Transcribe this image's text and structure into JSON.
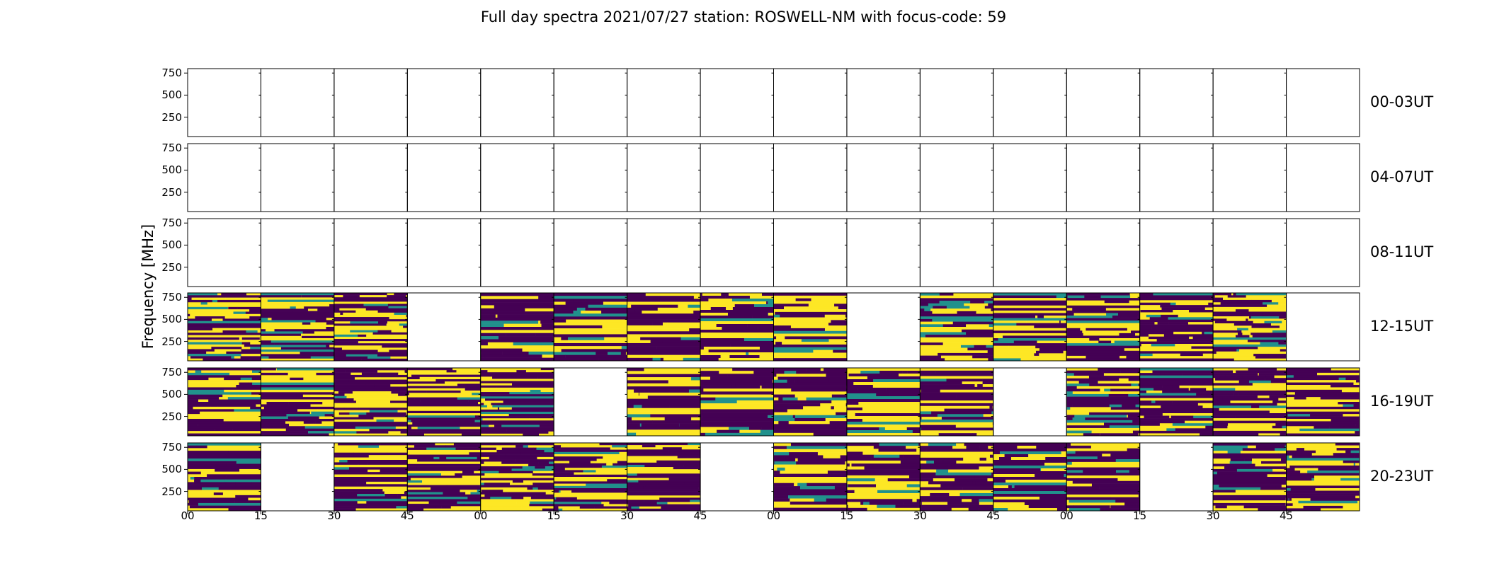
{
  "figure": {
    "title": "Full day spectra 2021/07/27 station: ROSWELL-NM with focus-code: 59",
    "ylabel": "Frequency [MHz]"
  },
  "colormap": {
    "name": "viridis",
    "low": "#440154",
    "mid": "#21918c",
    "high": "#fde725"
  },
  "chart_data": {
    "type": "heatmap",
    "title": "Full day spectra 2021/07/27 station: ROSWELL-NM with focus-code: 59",
    "ylabel": "Frequency [MHz]",
    "ylim": [
      30,
      800
    ],
    "yticks": [
      250,
      500,
      750
    ],
    "xticks": [
      "00",
      "15",
      "30",
      "45",
      "00",
      "15",
      "30",
      "45",
      "00",
      "15",
      "30",
      "45",
      "00",
      "15",
      "30",
      "45"
    ],
    "rows": [
      {
        "label": "00-03UT",
        "panels_with_data": [
          0,
          0,
          0,
          0,
          0,
          0,
          0,
          0,
          0,
          0,
          0,
          0,
          0,
          0,
          0,
          0
        ]
      },
      {
        "label": "04-07UT",
        "panels_with_data": [
          0,
          0,
          0,
          0,
          0,
          0,
          0,
          0,
          0,
          0,
          0,
          0,
          0,
          0,
          0,
          0
        ]
      },
      {
        "label": "08-11UT",
        "panels_with_data": [
          0,
          0,
          0,
          0,
          0,
          0,
          0,
          0,
          0,
          0,
          0,
          0,
          0,
          0,
          0,
          0
        ]
      },
      {
        "label": "12-15UT",
        "panels_with_data": [
          1,
          1,
          1,
          0,
          1,
          1,
          1,
          1,
          1,
          0,
          1,
          1,
          1,
          1,
          1,
          0
        ]
      },
      {
        "label": "16-19UT",
        "panels_with_data": [
          1,
          1,
          1,
          1,
          1,
          0,
          1,
          1,
          1,
          1,
          1,
          0,
          1,
          1,
          1,
          1
        ]
      },
      {
        "label": "20-23UT",
        "panels_with_data": [
          1,
          0,
          1,
          1,
          1,
          1,
          1,
          0,
          1,
          1,
          1,
          1,
          1,
          0,
          1,
          1
        ]
      }
    ]
  }
}
